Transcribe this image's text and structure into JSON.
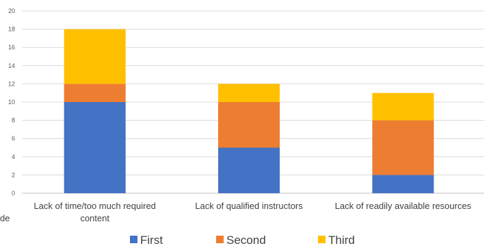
{
  "chart_data": {
    "type": "bar",
    "stacked": true,
    "title": "",
    "xlabel": "",
    "ylabel": "",
    "ylim": [
      0,
      20
    ],
    "yticks": [
      0,
      2,
      4,
      6,
      8,
      10,
      12,
      14,
      16,
      18,
      20
    ],
    "grid": true,
    "legend": "bottom",
    "categories": [
      [
        "Lack of time/too much required",
        "content"
      ],
      [
        "Lack of qualified instructors"
      ],
      [
        "Lack of readily available resources"
      ]
    ],
    "series": [
      {
        "name": "First",
        "color": "#4472c4",
        "values": [
          10,
          5,
          2
        ]
      },
      {
        "name": "Second",
        "color": "#ed7d31",
        "values": [
          2,
          5,
          6
        ]
      },
      {
        "name": "Third",
        "color": "#ffc000",
        "values": [
          6,
          2,
          3
        ]
      }
    ],
    "edge_text": "de"
  }
}
